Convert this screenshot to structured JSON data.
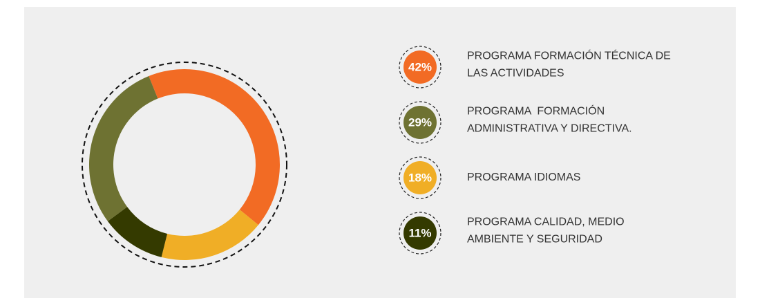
{
  "chart_data": {
    "type": "donut",
    "categories": [
      [
        "PROGRAMA FORMACIÓN TÉCNICA DE",
        "LAS ACTIVIDADES"
      ],
      [
        "PROGRAMA  FORMACIÓN",
        "ADMINISTRATIVA Y DIRECTIVA."
      ],
      [
        "PROGRAMA IDIOMAS"
      ],
      [
        "PROGRAMA CALIDAD, MEDIO",
        "AMBIENTE Y SEGURIDAD"
      ]
    ],
    "values": [
      42,
      29,
      18,
      11
    ],
    "value_labels": [
      "42%",
      "29%",
      "18%",
      "11%"
    ],
    "colors": [
      "#f26b24",
      "#6e7232",
      "#f0ae26",
      "#343a00"
    ]
  }
}
